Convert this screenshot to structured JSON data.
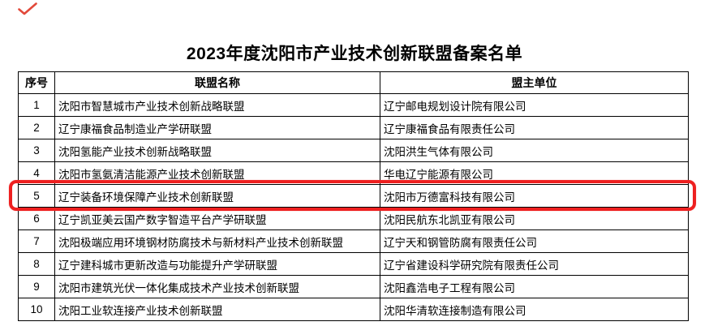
{
  "page": {
    "title": "2023年度沈阳市产业技术创新联盟备案名单"
  },
  "marks": {
    "check_color": "#e2493a"
  },
  "table": {
    "columns": [
      "序号",
      "联盟名称",
      "盟主单位"
    ],
    "rows": [
      {
        "no": "1",
        "alliance": "沈阳市智慧城市产业技术创新战略联盟",
        "owner": "辽宁邮电规划设计院有限公司"
      },
      {
        "no": "2",
        "alliance": "辽宁康福食品制造业产学研联盟",
        "owner": "辽宁康福食品有限责任公司"
      },
      {
        "no": "3",
        "alliance": "沈阳氢能产业技术创新战略联盟",
        "owner": "沈阳洪生气体有限公司"
      },
      {
        "no": "4",
        "alliance": "沈阳市氢氨清洁能源产业技术创新联盟",
        "owner": "华电辽宁能源有限公司"
      },
      {
        "no": "5",
        "alliance": "辽宁装备环境保障产业技术创新联盟",
        "owner": "沈阳市万德富科技有限公司"
      },
      {
        "no": "6",
        "alliance": "辽宁凯亚美云国产数字智造平台产学研联盟",
        "owner": "沈阳民航东北凯亚有限公司"
      },
      {
        "no": "7",
        "alliance": "沈阳极端应用环境钢材防腐技术与新材料产业技术创新联盟",
        "owner": "辽宁天和钢管防腐有限责任公司"
      },
      {
        "no": "8",
        "alliance": "辽宁建科城市更新改造与功能提升产学研联盟",
        "owner": "辽宁省建设科学研究院有限责任公司"
      },
      {
        "no": "9",
        "alliance": "沈阳市建筑光伏一体化集成技术产业技术创新联盟",
        "owner": "沈阳鑫浩电子工程有限公司"
      },
      {
        "no": "10",
        "alliance": "沈阳工业软连接产业技术创新联盟",
        "owner": "沈阳华清软连接制造有限公司"
      }
    ]
  },
  "highlight": {
    "row_no": "5",
    "color": "#ee2020"
  }
}
